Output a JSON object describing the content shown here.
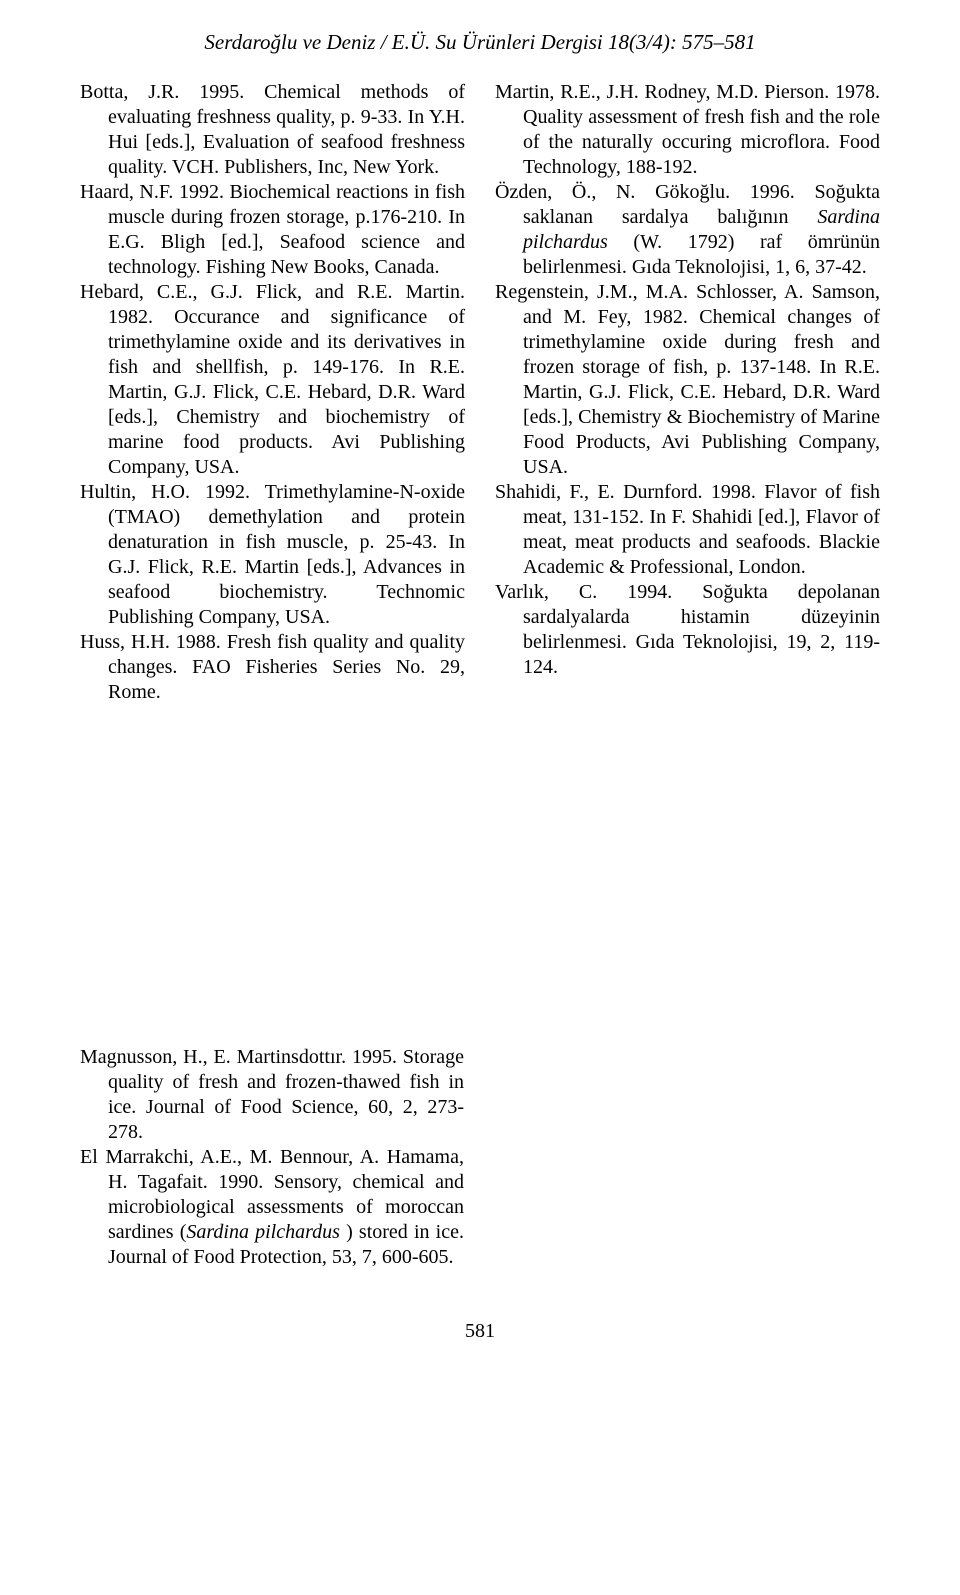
{
  "runningHeader": "Serdaroğlu ve Deniz / E.Ü. Su Ürünleri Dergisi 18(3/4): 575–581",
  "pageNumber": "581",
  "leftColumn": [
    {
      "html": "Botta, J.R. 1995. Chemical methods of evaluating freshness quality, p. 9-33. In Y.H. Hui [eds.], Evaluation of seafood freshness quality. VCH. Publishers, Inc, New York."
    },
    {
      "html": "Haard, N.F. 1992. Biochemical reactions in fish muscle during frozen storage, p.176-210. In E.G. Bligh [ed.], Seafood science and technology. Fishing New Books, Canada."
    },
    {
      "html": "Hebard, C.E., G.J. Flick, and R.E. Martin. 1982. Occurance and significance of trimethylamine oxide and its derivatives in fish and shellfish, p. 149-176. In R.E. Martin, G.J. Flick, C.E. Hebard, D.R. Ward [eds.], Chemistry and biochemistry of marine food products. Avi Publishing Company, USA."
    },
    {
      "html": "Hultin, H.O. 1992. Trimethylamine-N-oxide (TMAO) demethylation and protein denaturation in fish muscle, p. 25-43. In G.J. Flick, R.E. Martin [eds.], Advances in seafood biochemistry. Technomic Publishing Company, USA."
    },
    {
      "html": "Huss, H.H. 1988. Fresh fish quality and quality changes. FAO Fisheries Series No. 29, Rome."
    }
  ],
  "rightColumn": [
    {
      "html": "Martin, R.E., J.H. Rodney, M.D. Pierson. 1978. Quality assessment of fresh fish and the role of the naturally occuring microflora. Food Technology, 188-192."
    },
    {
      "html": "Özden, Ö., N. Gökoğlu. 1996. Soğukta saklanan sardalya balığının <span class=\"italic\">Sardina pilchardus</span> (W. 1792) raf ömrünün belirlenmesi. Gıda Teknolojisi, 1, 6, 37-42."
    },
    {
      "html": "Regenstein, J.M., M.A. Schlosser, A. Samson, and M. Fey, 1982. Chemical changes of trimethylamine oxide during fresh and frozen storage of fish, p. 137-148. In R.E. Martin, G.J. Flick, C.E. Hebard, D.R. Ward [eds.], Chemistry & Biochemistry of Marine Food Products, Avi Publishing Company, USA."
    },
    {
      "html": "Shahidi, F., E. Durnford. 1998. Flavor of fish meat, 131-152. In F. Shahidi [ed.], Flavor of meat, meat products and seafoods. Blackie Academic & Professional, London."
    },
    {
      "html": "Varlık, C. 1994. Soğukta depolanan sardalyalarda histamin düzeyinin belirlenmesi. Gıda Teknolojisi, 19, 2, 119-124."
    }
  ],
  "lowerBlock": [
    {
      "html": "Magnusson, H., E. Martinsdottır. 1995. Storage quality of fresh and frozen-thawed fish in ice. Journal of Food Science, 60, 2, 273-278."
    },
    {
      "html": "El Marrakchi, A.E., M. Bennour, A. Hamama, H. Tagafait. 1990. Sensory, chemical and microbiological assessments of moroccan sardines (<span class=\"italic\">Sardina pilchardus</span> ) stored in ice. Journal of Food Protection, 53, 7, 600-605."
    }
  ]
}
